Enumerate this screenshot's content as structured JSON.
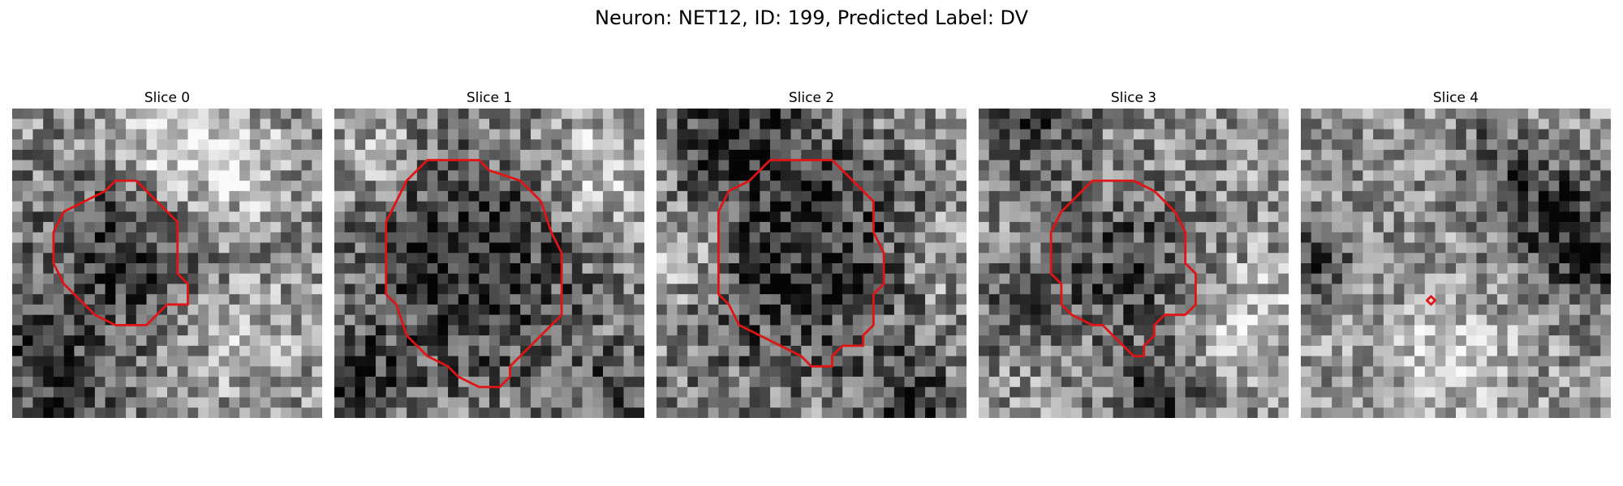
{
  "figure": {
    "title": "Neuron: NET12, ID: 199, Predicted Label: DV",
    "contour_color": "#e01414",
    "panels": [
      {
        "title": "Slice 0",
        "seed": 11,
        "base": 0.55,
        "contrast": 0.3,
        "contour": [
          [
            9,
            8
          ],
          [
            10,
            7
          ],
          [
            12,
            7
          ],
          [
            13,
            8
          ],
          [
            14,
            9
          ],
          [
            16,
            11
          ],
          [
            16,
            13
          ],
          [
            16,
            16
          ],
          [
            17,
            17
          ],
          [
            17,
            19
          ],
          [
            15,
            19
          ],
          [
            14,
            20
          ],
          [
            13,
            21
          ],
          [
            10,
            21
          ],
          [
            8,
            20
          ],
          [
            6,
            18
          ],
          [
            5,
            17
          ],
          [
            4,
            15
          ],
          [
            4,
            12
          ],
          [
            5,
            10
          ],
          [
            7,
            9
          ]
        ],
        "blobs": [
          [
            10,
            14,
            -0.35,
            6
          ],
          [
            2,
            22,
            -0.3,
            3
          ],
          [
            14,
            2,
            0.25,
            4
          ],
          [
            20,
            5,
            0.3,
            4
          ],
          [
            5,
            28,
            -0.35,
            3
          ],
          [
            22,
            22,
            0.2,
            4
          ]
        ]
      },
      {
        "title": "Slice 1",
        "seed": 23,
        "base": 0.55,
        "contrast": 0.3,
        "contour": [
          [
            7,
            7
          ],
          [
            8,
            6
          ],
          [
            9,
            5
          ],
          [
            14,
            5
          ],
          [
            15,
            6
          ],
          [
            18,
            7
          ],
          [
            20,
            9
          ],
          [
            21,
            12
          ],
          [
            22,
            14
          ],
          [
            22,
            20
          ],
          [
            21,
            21
          ],
          [
            20,
            22
          ],
          [
            19,
            23
          ],
          [
            18,
            24
          ],
          [
            17,
            25
          ],
          [
            17,
            26
          ],
          [
            16,
            27
          ],
          [
            14,
            27
          ],
          [
            12,
            26
          ],
          [
            11,
            25
          ],
          [
            9,
            24
          ],
          [
            7,
            22
          ],
          [
            6,
            19
          ],
          [
            5,
            18
          ],
          [
            5,
            11
          ],
          [
            6,
            9
          ]
        ],
        "blobs": [
          [
            13,
            15,
            -0.4,
            8
          ],
          [
            2,
            26,
            -0.3,
            3
          ],
          [
            25,
            6,
            0.3,
            4
          ],
          [
            27,
            27,
            -0.25,
            3
          ],
          [
            3,
            4,
            0.2,
            3
          ]
        ]
      },
      {
        "title": "Slice 2",
        "seed": 37,
        "base": 0.55,
        "contrast": 0.32,
        "contour": [
          [
            7,
            8
          ],
          [
            9,
            7
          ],
          [
            10,
            6
          ],
          [
            11,
            5
          ],
          [
            17,
            5
          ],
          [
            19,
            7
          ],
          [
            20,
            8
          ],
          [
            21,
            9
          ],
          [
            21,
            12
          ],
          [
            22,
            14
          ],
          [
            22,
            17
          ],
          [
            21,
            18
          ],
          [
            21,
            21
          ],
          [
            20,
            22
          ],
          [
            20,
            23
          ],
          [
            18,
            23
          ],
          [
            17,
            24
          ],
          [
            17,
            25
          ],
          [
            15,
            25
          ],
          [
            14,
            24
          ],
          [
            12,
            23
          ],
          [
            10,
            22
          ],
          [
            8,
            21
          ],
          [
            7,
            19
          ],
          [
            6,
            18
          ],
          [
            6,
            10
          ]
        ],
        "blobs": [
          [
            14,
            14,
            -0.4,
            8
          ],
          [
            8,
            2,
            -0.35,
            4
          ],
          [
            24,
            28,
            -0.35,
            3
          ],
          [
            2,
            14,
            0.25,
            3
          ],
          [
            27,
            14,
            0.2,
            3
          ]
        ]
      },
      {
        "title": "Slice 3",
        "seed": 53,
        "base": 0.58,
        "contrast": 0.3,
        "contour": [
          [
            9,
            9
          ],
          [
            10,
            8
          ],
          [
            11,
            7
          ],
          [
            15,
            7
          ],
          [
            17,
            8
          ],
          [
            19,
            10
          ],
          [
            20,
            12
          ],
          [
            20,
            15
          ],
          [
            21,
            16
          ],
          [
            21,
            19
          ],
          [
            20,
            20
          ],
          [
            18,
            20
          ],
          [
            17,
            21
          ],
          [
            17,
            22
          ],
          [
            16,
            23
          ],
          [
            16,
            24
          ],
          [
            15,
            24
          ],
          [
            14,
            23
          ],
          [
            13,
            22
          ],
          [
            12,
            21
          ],
          [
            11,
            21
          ],
          [
            9,
            20
          ],
          [
            8,
            19
          ],
          [
            8,
            17
          ],
          [
            7,
            16
          ],
          [
            7,
            12
          ],
          [
            8,
            10
          ]
        ],
        "blobs": [
          [
            14,
            15,
            -0.3,
            6
          ],
          [
            5,
            1,
            -0.3,
            4
          ],
          [
            17,
            28,
            -0.4,
            3
          ],
          [
            25,
            20,
            0.25,
            4
          ],
          [
            3,
            19,
            -0.25,
            3
          ]
        ]
      },
      {
        "title": "Slice 4",
        "seed": 71,
        "base": 0.58,
        "contrast": 0.28,
        "contour": [
          [
            12.6,
            18.2
          ],
          [
            13,
            18.6
          ],
          [
            12.6,
            19.0
          ],
          [
            12.2,
            18.6
          ]
        ],
        "blobs": [
          [
            24,
            10,
            -0.4,
            4
          ],
          [
            28,
            15,
            -0.3,
            3
          ],
          [
            1,
            14,
            -0.3,
            3
          ],
          [
            14,
            24,
            0.25,
            4
          ],
          [
            18,
            4,
            -0.2,
            3
          ]
        ]
      }
    ]
  }
}
